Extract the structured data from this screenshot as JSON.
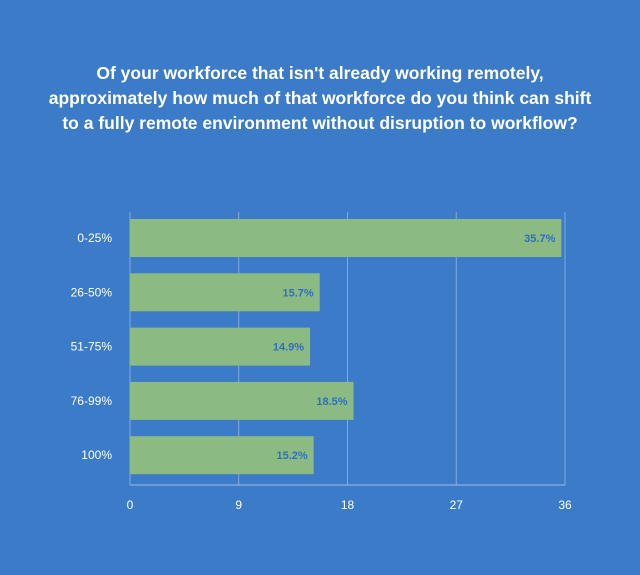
{
  "colors": {
    "background": "#3b7bc7",
    "bar": "#8bbb82",
    "grid": "#9fbfe6",
    "data_label": "#2f6fc0",
    "text": "#ffffff"
  },
  "chart_data": {
    "type": "bar",
    "orientation": "horizontal",
    "title": "Of your workforce that isn't already working remotely, approximately how much of that workforce do you think can shift to a fully remote environment without disruption to workflow?",
    "categories": [
      "0-25%",
      "26-50%",
      "51-75%",
      "76-99%",
      "100%"
    ],
    "values": [
      35.7,
      15.7,
      14.9,
      18.5,
      15.2
    ],
    "data_labels": [
      "35.7%",
      "15.7%",
      "14.9%",
      "18.5%",
      "15.2%"
    ],
    "xlim": [
      0,
      36
    ],
    "xticks": [
      0,
      9,
      18,
      27,
      36
    ],
    "grid": true,
    "legend": "none"
  }
}
